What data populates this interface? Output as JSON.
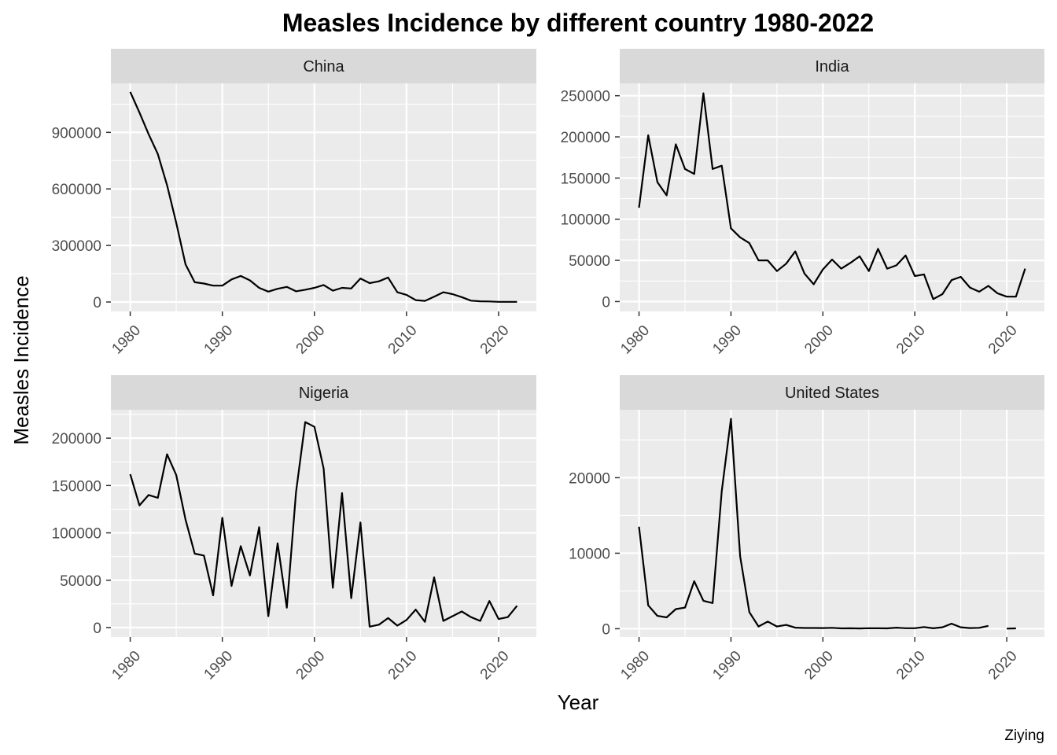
{
  "title": "Measles Incidence by different country 1980-2022",
  "ylabel": "Measles Incidence",
  "xlabel": "Year",
  "caption": "Ziying",
  "chart_data": {
    "type": "line",
    "title": "Measles Incidence by different country 1980-2022",
    "xlabel": "Year",
    "ylabel": "Measles Incidence",
    "x": [
      1980,
      1981,
      1982,
      1983,
      1984,
      1985,
      1986,
      1987,
      1988,
      1989,
      1990,
      1991,
      1992,
      1993,
      1994,
      1995,
      1996,
      1997,
      1998,
      1999,
      2000,
      2001,
      2002,
      2003,
      2004,
      2005,
      2006,
      2007,
      2008,
      2009,
      2010,
      2011,
      2012,
      2013,
      2014,
      2015,
      2016,
      2017,
      2018,
      2019,
      2020,
      2021,
      2022
    ],
    "xticks": [
      1980,
      1990,
      2000,
      2010,
      2020
    ],
    "xlim": [
      1977.9,
      2024.1
    ],
    "grid": true,
    "panels": [
      {
        "name": "China",
        "ylim": [
          -50000,
          1160000
        ],
        "yticks": [
          0,
          300000,
          600000,
          900000
        ],
        "values": [
          1115000,
          1005000,
          890000,
          785000,
          620000,
          420000,
          200000,
          105000,
          98000,
          87000,
          87000,
          120000,
          138000,
          115000,
          75000,
          55000,
          70000,
          80000,
          57000,
          65000,
          75000,
          90000,
          60000,
          75000,
          72000,
          125000,
          100000,
          110000,
          130000,
          52000,
          38000,
          10000,
          6000,
          28000,
          52000,
          42000,
          26000,
          7000,
          4000,
          3000,
          1000,
          1000,
          1000
        ]
      },
      {
        "name": "India",
        "ylim": [
          -12000,
          265000
        ],
        "yticks": [
          0,
          50000,
          100000,
          150000,
          200000,
          250000
        ],
        "values": [
          114000,
          202000,
          145000,
          129000,
          191000,
          161000,
          155000,
          253000,
          161000,
          165000,
          89000,
          78000,
          71000,
          50000,
          50000,
          37000,
          46000,
          61000,
          34000,
          21000,
          39000,
          51000,
          40000,
          47000,
          55000,
          37000,
          64000,
          40000,
          44000,
          56000,
          31000,
          33000,
          3000,
          9000,
          26000,
          30000,
          17000,
          12000,
          19000,
          10000,
          6000,
          6000,
          40000
        ]
      },
      {
        "name": "Nigeria",
        "ylim": [
          -10000,
          230000
        ],
        "yticks": [
          0,
          50000,
          100000,
          150000,
          200000
        ],
        "values": [
          162000,
          129000,
          140000,
          137000,
          183000,
          161000,
          114000,
          78000,
          76000,
          34000,
          116000,
          44000,
          86000,
          55000,
          106000,
          12000,
          89000,
          21000,
          143000,
          217000,
          212000,
          168000,
          42000,
          142000,
          31000,
          111000,
          1000,
          3000,
          10000,
          2000,
          8000,
          19000,
          6000,
          53000,
          7000,
          12000,
          17000,
          11000,
          7000,
          28000,
          9000,
          11000,
          23000
        ]
      },
      {
        "name": "United States",
        "ylim": [
          -1100,
          29000
        ],
        "yticks": [
          0,
          10000,
          20000
        ],
        "values": [
          13500,
          3100,
          1700,
          1500,
          2600,
          2800,
          6300,
          3700,
          3400,
          18200,
          27800,
          9600,
          2200,
          300,
          950,
          300,
          500,
          140,
          100,
          100,
          86,
          116,
          44,
          56,
          37,
          66,
          55,
          43,
          140,
          71,
          63,
          220,
          55,
          187,
          667,
          188,
          86,
          120,
          375,
          null,
          13,
          49,
          null
        ]
      }
    ]
  }
}
